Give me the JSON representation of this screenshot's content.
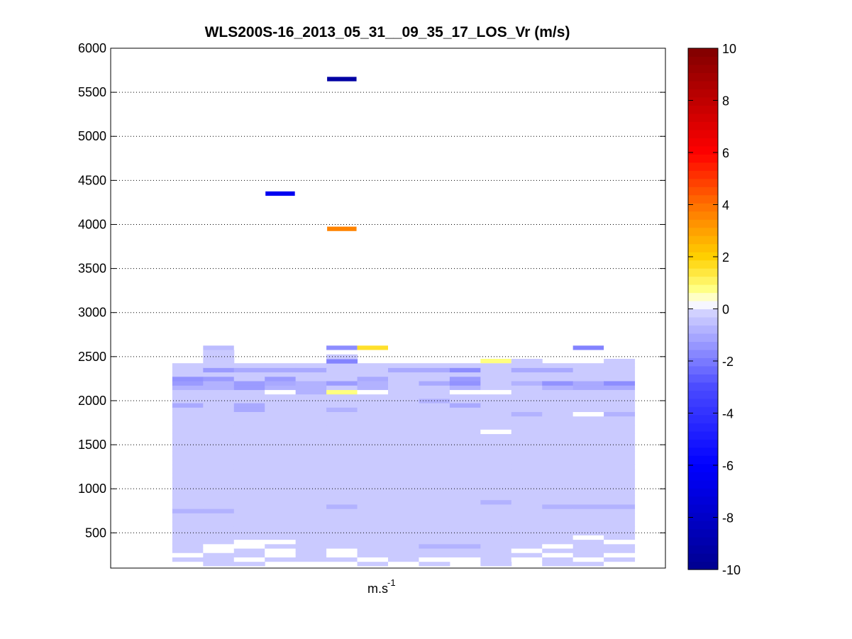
{
  "chart_data": {
    "type": "heatmap",
    "title": "WLS200S-16_2013_05_31__09_35_17_LOS_Vr (m/s)",
    "xlabel_base": "m.s",
    "xlabel_sup": "-1",
    "ylabel": "",
    "ylim": [
      100,
      6000
    ],
    "yticks": [
      "500",
      "1000",
      "1500",
      "2000",
      "2500",
      "3000",
      "3500",
      "4000",
      "4500",
      "5000",
      "5500",
      "6000"
    ],
    "grid": "horizontal-dotted",
    "colorbar": {
      "clim": [
        -10,
        10
      ],
      "ticks": [
        "-10",
        "-8",
        "-6",
        "-4",
        "-2",
        "0",
        "2",
        "4",
        "6",
        "8",
        "10"
      ],
      "colormap": "blue-white-yellow-red",
      "anchors": [
        {
          "v": -10,
          "color": "#00008f"
        },
        {
          "v": -6,
          "color": "#0000ff"
        },
        {
          "v": -3,
          "color": "#4b4bff"
        },
        {
          "v": 0,
          "color": "#d8d8ff"
        },
        {
          "v": 0.2,
          "color": "#ffffff"
        },
        {
          "v": 0.8,
          "color": "#ffff80"
        },
        {
          "v": 2,
          "color": "#ffd000"
        },
        {
          "v": 4,
          "color": "#ff7000"
        },
        {
          "v": 6,
          "color": "#ff0000"
        },
        {
          "v": 10,
          "color": "#800000"
        }
      ]
    },
    "columns": 18,
    "range_gates": {
      "start": 150,
      "step": 50,
      "count": 49
    },
    "default_value": -0.3,
    "column_top_gate": [
      0,
      0,
      46,
      49,
      46,
      46,
      46,
      48,
      46,
      46,
      46,
      46,
      46,
      47,
      46,
      46,
      47,
      0
    ],
    "column_bottom_gate": [
      0,
      0,
      1,
      0,
      0,
      1,
      0,
      0,
      0,
      0,
      0,
      1,
      0,
      1,
      0,
      0,
      0,
      0
    ],
    "cells": [
      {
        "col": 3,
        "range": 2600,
        "value": -0.6
      },
      {
        "col": 7,
        "range": 2600,
        "value": -1.6
      },
      {
        "col": 8,
        "range": 2600,
        "value": 1.6
      },
      {
        "col": 15,
        "range": 2600,
        "value": -1.8
      },
      {
        "col": 7,
        "range": 2450,
        "value": -1.8
      },
      {
        "col": 12,
        "range": 2450,
        "value": 0.8
      },
      {
        "col": 3,
        "range": 2350,
        "value": -1.3
      },
      {
        "col": 4,
        "range": 2350,
        "value": -1.0
      },
      {
        "col": 5,
        "range": 2350,
        "value": -1.0
      },
      {
        "col": 6,
        "range": 2350,
        "value": -1.0
      },
      {
        "col": 9,
        "range": 2350,
        "value": -1.0
      },
      {
        "col": 10,
        "range": 2350,
        "value": -1.0
      },
      {
        "col": 11,
        "range": 2350,
        "value": -1.6
      },
      {
        "col": 13,
        "range": 2350,
        "value": -1.0
      },
      {
        "col": 14,
        "range": 2350,
        "value": -1.0
      },
      {
        "col": 2,
        "range": 2250,
        "value": -1.5
      },
      {
        "col": 3,
        "range": 2250,
        "value": -1.3
      },
      {
        "col": 5,
        "range": 2250,
        "value": -1.3
      },
      {
        "col": 8,
        "range": 2250,
        "value": -1.0
      },
      {
        "col": 11,
        "range": 2250,
        "value": -1.3
      },
      {
        "col": 2,
        "range": 2200,
        "value": -1.3
      },
      {
        "col": 3,
        "range": 2200,
        "value": -0.8
      },
      {
        "col": 4,
        "range": 2200,
        "value": -1.3
      },
      {
        "col": 5,
        "range": 2200,
        "value": -1.0
      },
      {
        "col": 6,
        "range": 2200,
        "value": -0.8
      },
      {
        "col": 7,
        "range": 2200,
        "value": -1.3
      },
      {
        "col": 8,
        "range": 2200,
        "value": -0.8
      },
      {
        "col": 10,
        "range": 2200,
        "value": -1.0
      },
      {
        "col": 11,
        "range": 2200,
        "value": -1.5
      },
      {
        "col": 13,
        "range": 2200,
        "value": -0.8
      },
      {
        "col": 14,
        "range": 2200,
        "value": -1.5
      },
      {
        "col": 15,
        "range": 2200,
        "value": -1.0
      },
      {
        "col": 16,
        "range": 2200,
        "value": -1.6
      },
      {
        "col": 2,
        "range": 2150,
        "value": -0.8
      },
      {
        "col": 3,
        "range": 2150,
        "value": -0.8
      },
      {
        "col": 4,
        "range": 2150,
        "value": -1.3
      },
      {
        "col": 5,
        "range": 2150,
        "value": -0.8
      },
      {
        "col": 6,
        "range": 2150,
        "value": -0.8
      },
      {
        "col": 8,
        "range": 2150,
        "value": -0.8
      },
      {
        "col": 11,
        "range": 2150,
        "value": -0.8
      },
      {
        "col": 14,
        "range": 2150,
        "value": -0.8
      },
      {
        "col": 15,
        "range": 2150,
        "value": -1.0
      },
      {
        "col": 16,
        "range": 2150,
        "value": -1.0
      },
      {
        "col": 5,
        "range": 2100,
        "value": 0.2
      },
      {
        "col": 6,
        "range": 2100,
        "value": -0.8
      },
      {
        "col": 7,
        "range": 2100,
        "value": 0.8
      },
      {
        "col": 8,
        "range": 2100,
        "value": 0.2
      },
      {
        "col": 11,
        "range": 2100,
        "value": 0.2
      },
      {
        "col": 12,
        "range": 2100,
        "value": 0.2
      },
      {
        "col": 10,
        "range": 2000,
        "value": -0.8
      },
      {
        "col": 2,
        "range": 1950,
        "value": -1.0
      },
      {
        "col": 4,
        "range": 1950,
        "value": -1.0
      },
      {
        "col": 11,
        "range": 1950,
        "value": -1.0
      },
      {
        "col": 4,
        "range": 1900,
        "value": -1.0
      },
      {
        "col": 7,
        "range": 1900,
        "value": -0.8
      },
      {
        "col": 13,
        "range": 1850,
        "value": -0.8
      },
      {
        "col": 15,
        "range": 1850,
        "value": 0.2
      },
      {
        "col": 16,
        "range": 1850,
        "value": -0.8
      },
      {
        "col": 12,
        "range": 1650,
        "value": 0.2
      },
      {
        "col": 12,
        "range": 850,
        "value": -0.8
      },
      {
        "col": 7,
        "range": 800,
        "value": -0.8
      },
      {
        "col": 14,
        "range": 800,
        "value": -0.8
      },
      {
        "col": 2,
        "range": 750,
        "value": -0.8
      },
      {
        "col": 3,
        "range": 750,
        "value": -0.8
      },
      {
        "col": 15,
        "range": 800,
        "value": -0.8
      },
      {
        "col": 16,
        "range": 800,
        "value": -0.8
      },
      {
        "col": 5,
        "range": 400,
        "value": 0.2
      },
      {
        "col": 15,
        "range": 450,
        "value": 0.2
      },
      {
        "col": 4,
        "range": 400,
        "value": 0.2
      },
      {
        "col": 16,
        "range": 400,
        "value": 0.2
      },
      {
        "col": 3,
        "range": 350,
        "value": 0.2
      },
      {
        "col": 4,
        "range": 350,
        "value": 0.2
      },
      {
        "col": 11,
        "range": 350,
        "value": -0.8
      },
      {
        "col": 10,
        "range": 350,
        "value": -0.8
      },
      {
        "col": 14,
        "range": 350,
        "value": 0.2
      },
      {
        "col": 5,
        "range": 300,
        "value": 0.2
      },
      {
        "col": 7,
        "range": 300,
        "value": 0.2
      },
      {
        "col": 13,
        "range": 300,
        "value": 0.2
      },
      {
        "col": 2,
        "range": 250,
        "value": 0.2
      },
      {
        "col": 3,
        "range": 300,
        "value": 0.2
      },
      {
        "col": 14,
        "range": 250,
        "value": 0.2
      },
      {
        "col": 16,
        "range": 250,
        "value": 0.2
      },
      {
        "col": 5,
        "range": 250,
        "value": 0.2
      },
      {
        "col": 7,
        "range": 250,
        "value": 0.2
      },
      {
        "col": 10,
        "range": 200,
        "value": 0.2
      },
      {
        "col": 11,
        "range": 200,
        "value": 0.2
      },
      {
        "col": 13,
        "range": 200,
        "value": 0.2
      },
      {
        "col": 15,
        "range": 200,
        "value": 0.2
      },
      {
        "col": 4,
        "range": 200,
        "value": 0.2
      },
      {
        "col": 8,
        "range": 200,
        "value": 0.2
      },
      {
        "col": 16,
        "range": 150,
        "value": 0.2
      },
      {
        "col": 6,
        "range": 150,
        "value": 0.2
      },
      {
        "col": 7,
        "range": 150,
        "value": 0.2
      },
      {
        "col": 9,
        "range": 150,
        "value": 0.2
      }
    ],
    "isolated_cells": [
      {
        "col": 7,
        "range": 5650,
        "value": -9.3
      },
      {
        "col": 5,
        "range": 4350,
        "value": -6.5
      },
      {
        "col": 7,
        "range": 3950,
        "value": 3.6
      }
    ]
  }
}
